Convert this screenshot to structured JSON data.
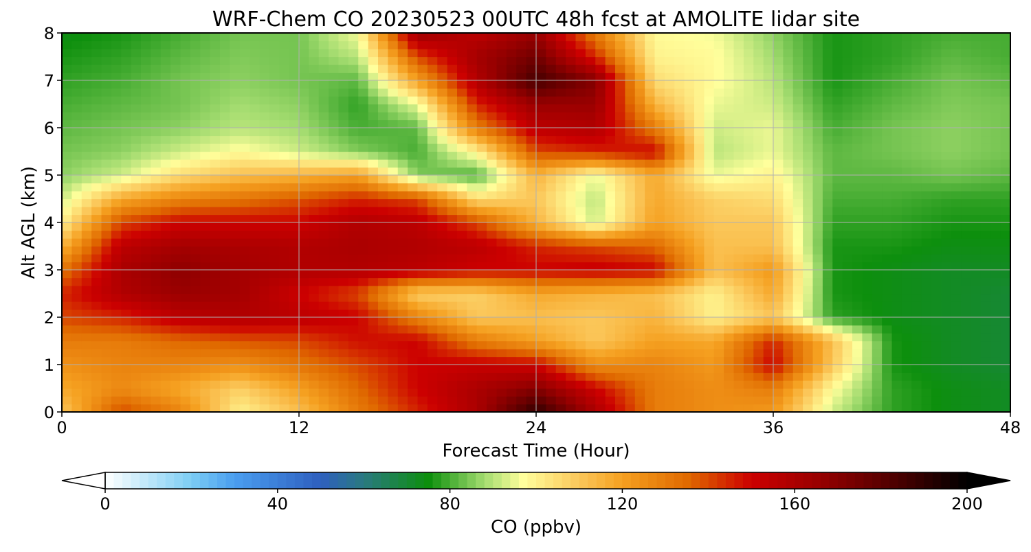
{
  "chart_data": {
    "type": "heatmap",
    "title": "WRF-Chem CO  20230523 00UTC 48h fcst at AMOLITE lidar site",
    "xlabel": "Forecast Time (Hour)",
    "ylabel": "Alt AGL (km)",
    "xlim": [
      0,
      48
    ],
    "ylim": [
      0,
      8
    ],
    "xticks": [
      0,
      12,
      24,
      36,
      48
    ],
    "yticks": [
      0,
      1,
      2,
      3,
      4,
      5,
      6,
      7,
      8
    ],
    "grid": true,
    "colorbar": {
      "label": "CO  (ppbv)",
      "min": 0,
      "max": 200,
      "ticks": [
        0,
        40,
        80,
        120,
        160,
        200
      ],
      "extend": "both",
      "stops": [
        {
          "v": 0,
          "c": "#ffffff"
        },
        {
          "v": 20,
          "c": "#7ccdf4"
        },
        {
          "v": 30,
          "c": "#4a9ef0"
        },
        {
          "v": 50,
          "c": "#2e5fbf"
        },
        {
          "v": 60,
          "c": "#2a7a80"
        },
        {
          "v": 75,
          "c": "#0d8f0d"
        },
        {
          "v": 88,
          "c": "#a4dc70"
        },
        {
          "v": 97,
          "c": "#ffff9c"
        },
        {
          "v": 110,
          "c": "#fbc75a"
        },
        {
          "v": 120,
          "c": "#f5a020"
        },
        {
          "v": 135,
          "c": "#e06a00"
        },
        {
          "v": 150,
          "c": "#cc0000"
        },
        {
          "v": 165,
          "c": "#9a0000"
        },
        {
          "v": 180,
          "c": "#5c0000"
        },
        {
          "v": 200,
          "c": "#000000"
        }
      ]
    },
    "x": [
      0,
      3,
      6,
      9,
      12,
      15,
      18,
      21,
      24,
      27,
      30,
      33,
      36,
      39,
      42,
      45,
      48
    ],
    "y": [
      0,
      0.5,
      1,
      1.5,
      2,
      2.5,
      3,
      3.5,
      4,
      4.5,
      5,
      5.5,
      6,
      6.5,
      7,
      7.5,
      8
    ],
    "z": [
      [
        110,
        140,
        128,
        100,
        112,
        130,
        145,
        160,
        190,
        160,
        130,
        125,
        122,
        92,
        78,
        74,
        72
      ],
      [
        118,
        126,
        118,
        108,
        120,
        135,
        150,
        160,
        170,
        150,
        130,
        125,
        130,
        98,
        78,
        74,
        72
      ],
      [
        124,
        128,
        128,
        125,
        132,
        140,
        150,
        152,
        150,
        125,
        128,
        122,
        150,
        110,
        76,
        72,
        70
      ],
      [
        130,
        130,
        135,
        138,
        140,
        148,
        150,
        130,
        120,
        110,
        120,
        118,
        145,
        112,
        76,
        72,
        70
      ],
      [
        140,
        145,
        155,
        158,
        155,
        150,
        128,
        110,
        112,
        110,
        115,
        100,
        110,
        78,
        74,
        72,
        70
      ],
      [
        145,
        158,
        165,
        162,
        150,
        140,
        108,
        108,
        118,
        115,
        112,
        100,
        118,
        76,
        74,
        72,
        70
      ],
      [
        132,
        160,
        168,
        162,
        158,
        158,
        155,
        150,
        150,
        152,
        150,
        112,
        122,
        76,
        74,
        72,
        72
      ],
      [
        115,
        155,
        162,
        160,
        158,
        160,
        158,
        155,
        145,
        140,
        135,
        112,
        112,
        76,
        76,
        74,
        74
      ],
      [
        100,
        140,
        150,
        150,
        150,
        158,
        155,
        140,
        115,
        92,
        120,
        110,
        110,
        78,
        78,
        76,
        76
      ],
      [
        92,
        118,
        128,
        132,
        138,
        145,
        140,
        105,
        110,
        90,
        118,
        108,
        105,
        80,
        80,
        78,
        78
      ],
      [
        86,
        92,
        105,
        112,
        115,
        120,
        85,
        80,
        115,
        95,
        118,
        95,
        100,
        82,
        82,
        84,
        82
      ],
      [
        84,
        86,
        92,
        98,
        92,
        85,
        80,
        100,
        140,
        145,
        150,
        90,
        95,
        82,
        84,
        86,
        84
      ],
      [
        82,
        84,
        86,
        90,
        88,
        80,
        82,
        130,
        155,
        158,
        130,
        92,
        95,
        80,
        84,
        86,
        84
      ],
      [
        80,
        82,
        84,
        88,
        86,
        78,
        95,
        145,
        165,
        165,
        115,
        95,
        92,
        78,
        82,
        85,
        84
      ],
      [
        78,
        80,
        84,
        86,
        84,
        82,
        120,
        158,
        185,
        170,
        105,
        98,
        90,
        76,
        80,
        84,
        82
      ],
      [
        76,
        78,
        82,
        85,
        84,
        90,
        140,
        162,
        175,
        145,
        100,
        98,
        88,
        76,
        78,
        82,
        80
      ],
      [
        74,
        76,
        80,
        84,
        84,
        96,
        165,
        155,
        165,
        130,
        98,
        96,
        86,
        76,
        78,
        80,
        80
      ]
    ]
  }
}
